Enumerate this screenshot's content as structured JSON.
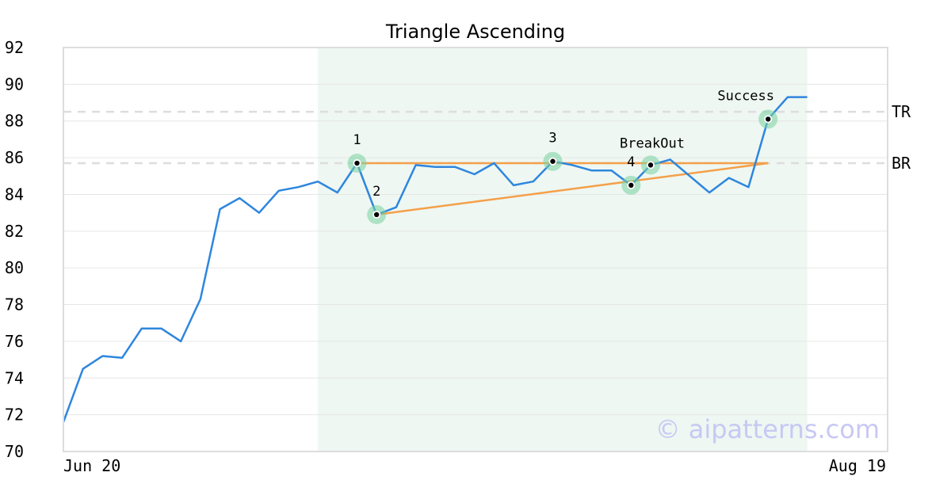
{
  "chart_data": {
    "type": "line",
    "title": "Triangle Ascending",
    "xlabel": "",
    "ylabel": "",
    "ylim": [
      70,
      92
    ],
    "yticks": [
      70,
      72,
      74,
      76,
      78,
      80,
      82,
      84,
      86,
      88,
      90,
      92
    ],
    "x_axis_labels": {
      "start": "Jun 20",
      "end": "Aug 19"
    },
    "grid": "horizontal",
    "series": [
      {
        "color": "#2e86de",
        "values": [
          71.6,
          74.5,
          75.2,
          75.1,
          76.7,
          76.7,
          76.0,
          78.3,
          83.2,
          83.8,
          83.0,
          84.2,
          84.4,
          84.7,
          84.1,
          85.7,
          82.9,
          83.3,
          85.6,
          85.5,
          85.5,
          85.1,
          85.7,
          84.5,
          84.7,
          85.8,
          85.6,
          85.3,
          85.3,
          84.5,
          85.6,
          85.9,
          85.0,
          84.1,
          84.9,
          84.4,
          88.1,
          89.3,
          89.3
        ]
      }
    ],
    "pattern_region": {
      "start_index": 13,
      "end_index": 38,
      "color": "#eef7f2"
    },
    "levels": [
      {
        "label": "TR",
        "value": 88.5
      },
      {
        "label": "BR",
        "value": 85.7
      }
    ],
    "trendlines": [
      {
        "color": "#f4a04a",
        "from": {
          "index": 15,
          "value": 85.7
        },
        "to": {
          "index": 36,
          "value": 85.7
        }
      },
      {
        "color": "#f4a04a",
        "from": {
          "index": 16,
          "value": 82.9
        },
        "to": {
          "index": 36,
          "value": 85.7
        }
      }
    ],
    "points": [
      {
        "label": "1",
        "index": 15,
        "value": 85.7,
        "label_pos": "above"
      },
      {
        "label": "2",
        "index": 16,
        "value": 82.9,
        "label_pos": "above"
      },
      {
        "label": "3",
        "index": 25,
        "value": 85.8,
        "label_pos": "above"
      },
      {
        "label": "4",
        "index": 29,
        "value": 84.5,
        "label_pos": "above"
      },
      {
        "label": "BreakOut",
        "index": 30,
        "value": 85.6,
        "label_pos": "above"
      },
      {
        "label": "Success",
        "index": 36,
        "value": 88.1,
        "label_pos": "above-left"
      }
    ],
    "watermark": "© aipatterns.com"
  }
}
